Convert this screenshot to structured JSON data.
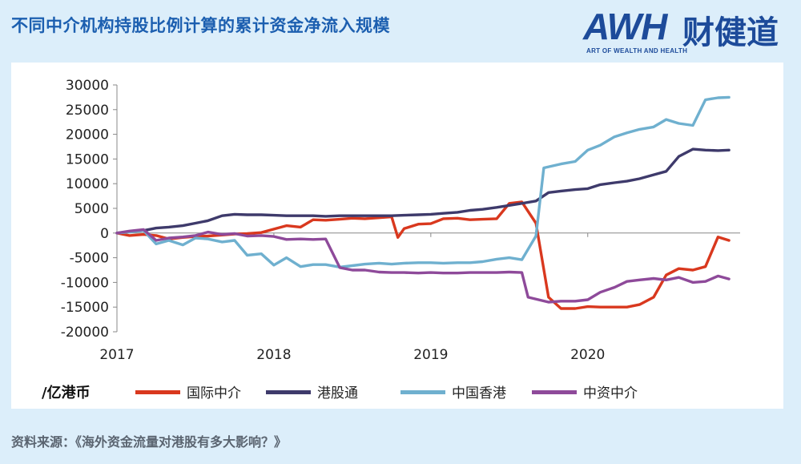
{
  "header": {
    "title": "不同中介机构持股比例计算的累计资金净流入规模"
  },
  "logo": {
    "brand": "AWH",
    "brand_cn": "财健道",
    "subtitle": "ART OF WEALTH AND HEALTH"
  },
  "source": "资料来源：《海外资金流量对港股有多大影响？》",
  "chart_data": {
    "type": "line",
    "unit_label": "/亿港币",
    "x_ticks": [
      "2017",
      "2018",
      "2019",
      "2020"
    ],
    "xlim": [
      2017.0,
      2020.92
    ],
    "ylim": [
      -20000,
      30000
    ],
    "y_ticks": [
      "30000",
      "25000",
      "20000",
      "15000",
      "10000",
      "5000",
      "0",
      "-5000",
      "-10000",
      "-15000",
      "-20000"
    ],
    "grid": false,
    "legend_position": "bottom",
    "series": [
      {
        "name": "国际中介",
        "color": "#d9381e",
        "points": [
          [
            2017.0,
            0
          ],
          [
            2017.08,
            -500
          ],
          [
            2017.17,
            -300
          ],
          [
            2017.25,
            -500
          ],
          [
            2017.33,
            -1200
          ],
          [
            2017.42,
            -900
          ],
          [
            2017.5,
            -700
          ],
          [
            2017.58,
            -600
          ],
          [
            2017.67,
            -400
          ],
          [
            2017.75,
            -200
          ],
          [
            2017.83,
            -100
          ],
          [
            2017.92,
            100
          ],
          [
            2018.0,
            800
          ],
          [
            2018.08,
            1500
          ],
          [
            2018.17,
            1200
          ],
          [
            2018.25,
            2700
          ],
          [
            2018.33,
            2600
          ],
          [
            2018.42,
            2800
          ],
          [
            2018.5,
            3000
          ],
          [
            2018.58,
            2900
          ],
          [
            2018.67,
            3100
          ],
          [
            2018.75,
            3300
          ],
          [
            2018.79,
            -900
          ],
          [
            2018.83,
            900
          ],
          [
            2018.92,
            1800
          ],
          [
            2019.0,
            1900
          ],
          [
            2019.08,
            2900
          ],
          [
            2019.17,
            3000
          ],
          [
            2019.25,
            2700
          ],
          [
            2019.33,
            2800
          ],
          [
            2019.42,
            2900
          ],
          [
            2019.5,
            6000
          ],
          [
            2019.58,
            6300
          ],
          [
            2019.67,
            2000
          ],
          [
            2019.75,
            -13000
          ],
          [
            2019.83,
            -15300
          ],
          [
            2019.92,
            -15300
          ],
          [
            2020.0,
            -14900
          ],
          [
            2020.08,
            -15000
          ],
          [
            2020.17,
            -15000
          ],
          [
            2020.25,
            -15000
          ],
          [
            2020.33,
            -14500
          ],
          [
            2020.42,
            -13000
          ],
          [
            2020.5,
            -8500
          ],
          [
            2020.58,
            -7200
          ],
          [
            2020.67,
            -7500
          ],
          [
            2020.75,
            -6800
          ],
          [
            2020.83,
            -800
          ],
          [
            2020.9,
            -1500
          ]
        ]
      },
      {
        "name": "港股通",
        "color": "#3e3a6b",
        "points": [
          [
            2017.0,
            0
          ],
          [
            2017.08,
            300
          ],
          [
            2017.17,
            500
          ],
          [
            2017.25,
            1000
          ],
          [
            2017.33,
            1200
          ],
          [
            2017.42,
            1500
          ],
          [
            2017.5,
            2000
          ],
          [
            2017.58,
            2500
          ],
          [
            2017.67,
            3500
          ],
          [
            2017.75,
            3800
          ],
          [
            2017.83,
            3700
          ],
          [
            2017.92,
            3700
          ],
          [
            2018.0,
            3600
          ],
          [
            2018.08,
            3500
          ],
          [
            2018.17,
            3500
          ],
          [
            2018.25,
            3500
          ],
          [
            2018.33,
            3400
          ],
          [
            2018.42,
            3500
          ],
          [
            2018.5,
            3500
          ],
          [
            2018.58,
            3500
          ],
          [
            2018.67,
            3500
          ],
          [
            2018.75,
            3500
          ],
          [
            2018.83,
            3600
          ],
          [
            2018.92,
            3700
          ],
          [
            2019.0,
            3800
          ],
          [
            2019.08,
            4000
          ],
          [
            2019.17,
            4200
          ],
          [
            2019.25,
            4600
          ],
          [
            2019.33,
            4800
          ],
          [
            2019.42,
            5200
          ],
          [
            2019.5,
            5600
          ],
          [
            2019.58,
            6000
          ],
          [
            2019.67,
            6500
          ],
          [
            2019.75,
            8200
          ],
          [
            2019.83,
            8500
          ],
          [
            2019.92,
            8800
          ],
          [
            2020.0,
            9000
          ],
          [
            2020.08,
            9800
          ],
          [
            2020.17,
            10200
          ],
          [
            2020.25,
            10500
          ],
          [
            2020.33,
            11000
          ],
          [
            2020.42,
            11800
          ],
          [
            2020.5,
            12500
          ],
          [
            2020.58,
            15500
          ],
          [
            2020.67,
            17000
          ],
          [
            2020.75,
            16800
          ],
          [
            2020.83,
            16700
          ],
          [
            2020.9,
            16800
          ]
        ]
      },
      {
        "name": "中国香港",
        "color": "#6fb0cf",
        "points": [
          [
            2017.0,
            0
          ],
          [
            2017.08,
            200
          ],
          [
            2017.17,
            500
          ],
          [
            2017.25,
            -2200
          ],
          [
            2017.33,
            -1500
          ],
          [
            2017.42,
            -2400
          ],
          [
            2017.5,
            -1000
          ],
          [
            2017.58,
            -1200
          ],
          [
            2017.67,
            -1800
          ],
          [
            2017.75,
            -1500
          ],
          [
            2017.83,
            -4500
          ],
          [
            2017.92,
            -4200
          ],
          [
            2018.0,
            -6500
          ],
          [
            2018.08,
            -5000
          ],
          [
            2018.17,
            -6800
          ],
          [
            2018.25,
            -6400
          ],
          [
            2018.33,
            -6400
          ],
          [
            2018.42,
            -6900
          ],
          [
            2018.5,
            -6600
          ],
          [
            2018.58,
            -6300
          ],
          [
            2018.67,
            -6100
          ],
          [
            2018.75,
            -6300
          ],
          [
            2018.83,
            -6100
          ],
          [
            2018.92,
            -6000
          ],
          [
            2019.0,
            -6000
          ],
          [
            2019.08,
            -6100
          ],
          [
            2019.17,
            -6000
          ],
          [
            2019.25,
            -6000
          ],
          [
            2019.33,
            -5800
          ],
          [
            2019.42,
            -5300
          ],
          [
            2019.5,
            -5000
          ],
          [
            2019.58,
            -5400
          ],
          [
            2019.67,
            -600
          ],
          [
            2019.72,
            13200
          ],
          [
            2019.83,
            14000
          ],
          [
            2019.92,
            14500
          ],
          [
            2020.0,
            16800
          ],
          [
            2020.08,
            17800
          ],
          [
            2020.17,
            19500
          ],
          [
            2020.25,
            20300
          ],
          [
            2020.33,
            21000
          ],
          [
            2020.42,
            21500
          ],
          [
            2020.5,
            23000
          ],
          [
            2020.58,
            22200
          ],
          [
            2020.67,
            21800
          ],
          [
            2020.75,
            27000
          ],
          [
            2020.83,
            27400
          ],
          [
            2020.9,
            27500
          ]
        ]
      },
      {
        "name": "中资中介",
        "color": "#8e4a9a",
        "points": [
          [
            2017.0,
            0
          ],
          [
            2017.08,
            400
          ],
          [
            2017.17,
            700
          ],
          [
            2017.25,
            -1500
          ],
          [
            2017.33,
            -1000
          ],
          [
            2017.42,
            -800
          ],
          [
            2017.5,
            -500
          ],
          [
            2017.58,
            200
          ],
          [
            2017.67,
            -300
          ],
          [
            2017.75,
            -100
          ],
          [
            2017.83,
            -600
          ],
          [
            2017.92,
            -500
          ],
          [
            2018.0,
            -700
          ],
          [
            2018.08,
            -1300
          ],
          [
            2018.17,
            -1200
          ],
          [
            2018.25,
            -1300
          ],
          [
            2018.33,
            -1200
          ],
          [
            2018.42,
            -7000
          ],
          [
            2018.5,
            -7500
          ],
          [
            2018.58,
            -7500
          ],
          [
            2018.67,
            -7900
          ],
          [
            2018.75,
            -8000
          ],
          [
            2018.83,
            -8000
          ],
          [
            2018.92,
            -8100
          ],
          [
            2019.0,
            -8000
          ],
          [
            2019.08,
            -8100
          ],
          [
            2019.17,
            -8100
          ],
          [
            2019.25,
            -8000
          ],
          [
            2019.33,
            -8000
          ],
          [
            2019.42,
            -8000
          ],
          [
            2019.5,
            -7900
          ],
          [
            2019.58,
            -8000
          ],
          [
            2019.62,
            -13000
          ],
          [
            2019.75,
            -14000
          ],
          [
            2019.83,
            -13800
          ],
          [
            2019.92,
            -13800
          ],
          [
            2020.0,
            -13500
          ],
          [
            2020.08,
            -12000
          ],
          [
            2020.17,
            -11000
          ],
          [
            2020.25,
            -9800
          ],
          [
            2020.33,
            -9500
          ],
          [
            2020.42,
            -9200
          ],
          [
            2020.5,
            -9500
          ],
          [
            2020.58,
            -9000
          ],
          [
            2020.67,
            -10000
          ],
          [
            2020.75,
            -9800
          ],
          [
            2020.83,
            -8700
          ],
          [
            2020.9,
            -9300
          ]
        ]
      }
    ]
  }
}
